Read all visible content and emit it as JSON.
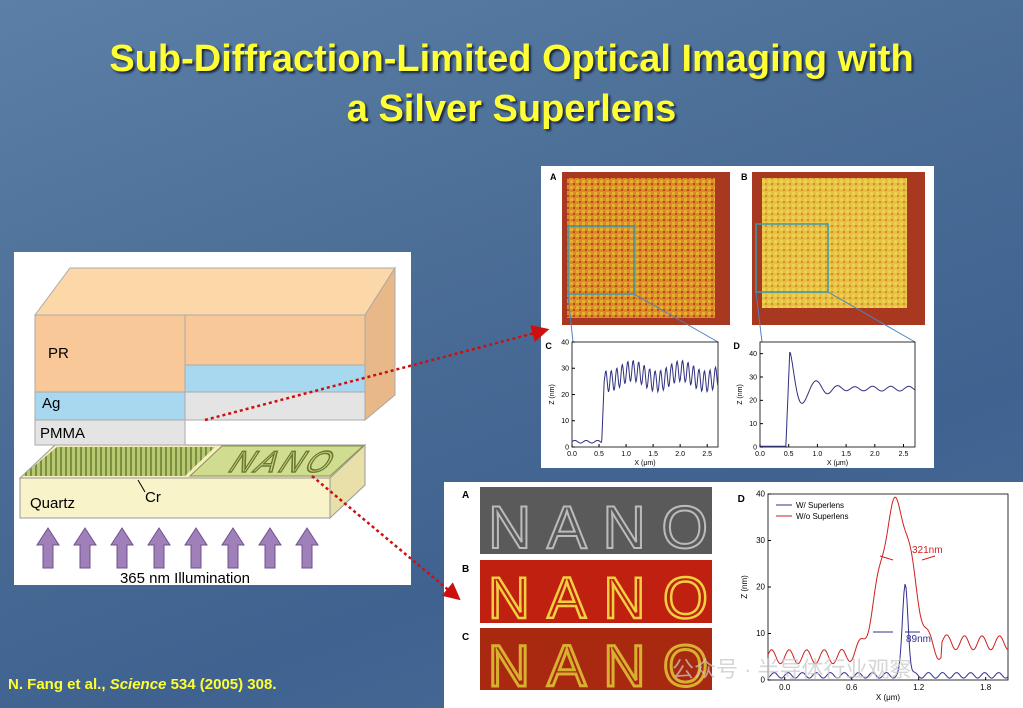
{
  "title": {
    "line1": "Sub-Diffraction-Limited Optical Imaging with",
    "line2": "a Silver Superlens"
  },
  "diagram": {
    "layers": [
      "PR",
      "Ag",
      "PMMA",
      "Quartz"
    ],
    "cr_label": "Cr",
    "pattern_text": "NANO",
    "illumination": "365 nm Illumination"
  },
  "figure_top": {
    "panel_a": "A",
    "panel_b": "B",
    "plot_c": {
      "label": "C",
      "x_label": "X (μm)",
      "y_label": "Z (nm)",
      "xlim": [
        0,
        2.7
      ],
      "ylim": [
        0,
        40
      ],
      "xticks": [
        {
          "value": 0,
          "label": "0.0"
        },
        {
          "value": 0.5,
          "label": "0.5"
        },
        {
          "value": 1,
          "label": "1.0"
        },
        {
          "value": 1.5,
          "label": "1.5"
        },
        {
          "value": 2,
          "label": "2.0"
        },
        {
          "value": 2.5,
          "label": "2.5"
        }
      ],
      "yticks": [
        0,
        10,
        20,
        30,
        40
      ]
    },
    "plot_d": {
      "label": "D",
      "x_label": "X (μm)",
      "y_label": "Z (nm)",
      "xlim": [
        0,
        2.7
      ],
      "ylim": [
        0,
        45
      ],
      "xticks": [
        {
          "value": 0,
          "label": "0.0"
        },
        {
          "value": 0.5,
          "label": "0.5"
        },
        {
          "value": 1,
          "label": "1.0"
        },
        {
          "value": 1.5,
          "label": "1.5"
        },
        {
          "value": 2,
          "label": "2.0"
        },
        {
          "value": 2.5,
          "label": "2.5"
        }
      ],
      "yticks": [
        0,
        10,
        20,
        30,
        40
      ]
    }
  },
  "figure_bottom": {
    "panel_a": "A",
    "panel_b": "B",
    "panel_c": "C",
    "pattern_text": "NANO",
    "plot_d": {
      "label": "D",
      "x_label": "X (μm)",
      "y_label": "Z (nm)",
      "xlim": [
        -0.15,
        2.0
      ],
      "ylim": [
        0,
        40
      ],
      "xticks": [
        {
          "value": 0,
          "label": "0.0"
        },
        {
          "value": 0.6,
          "label": "0.6"
        },
        {
          "value": 1.2,
          "label": "1.2"
        },
        {
          "value": 1.8,
          "label": "1.8"
        }
      ],
      "yticks": [
        0,
        10,
        20,
        30,
        40
      ],
      "legend": [
        "W/ Superlens",
        "W/o Superlens"
      ],
      "annotations": [
        "321nm",
        "89nm"
      ]
    }
  },
  "citation": {
    "authors": "N. Fang et al.,",
    "journal": "Science",
    "rest": "534 (2005) 308."
  },
  "watermark": "公众号 · 半导体行业观察"
}
